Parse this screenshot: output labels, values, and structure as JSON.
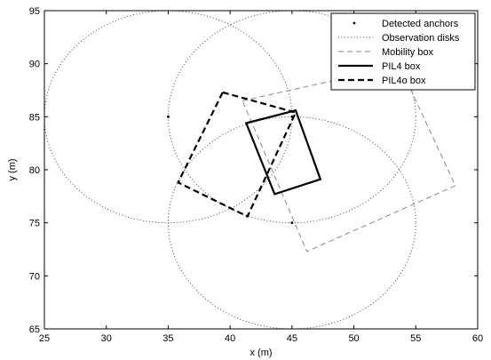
{
  "chart_data": {
    "type": "line",
    "title": "",
    "xlabel": "x (m)",
    "ylabel": "y (m)",
    "xlim": [
      25,
      60
    ],
    "ylim": [
      65,
      95
    ],
    "xticks": [
      25,
      30,
      35,
      40,
      45,
      50,
      55,
      60
    ],
    "yticks": [
      65,
      70,
      75,
      80,
      85,
      90,
      95
    ],
    "grid": false,
    "legend_position": "top-right",
    "legend": [
      {
        "label": "Detected anchors",
        "style": "dot"
      },
      {
        "label": "Observation disks",
        "style": "dotted"
      },
      {
        "label": "Mobility box",
        "style": "dashed-thin"
      },
      {
        "label": "PIL4 box",
        "style": "solid-thick"
      },
      {
        "label": "PIL4o box",
        "style": "dashed-thick"
      }
    ],
    "anchors": [
      [
        35,
        85
      ],
      [
        45,
        85
      ],
      [
        45,
        75
      ]
    ],
    "disk_radius": 10,
    "mobility_box": [
      [
        41.0,
        86.5
      ],
      [
        53.7,
        89.8
      ],
      [
        58.2,
        78.5
      ],
      [
        46.2,
        72.3
      ]
    ],
    "pil4_box": [
      [
        41.3,
        84.4
      ],
      [
        45.3,
        85.6
      ],
      [
        47.3,
        79.1
      ],
      [
        43.6,
        77.7
      ]
    ],
    "pil4o_box": [
      [
        39.4,
        87.3
      ],
      [
        45.3,
        85.4
      ],
      [
        41.4,
        75.6
      ],
      [
        35.8,
        78.8
      ]
    ],
    "colors": {
      "axis": "#000000",
      "disk": "#444444",
      "mobility": "#888888",
      "pil4": "#000000",
      "pil4o": "#000000"
    }
  }
}
